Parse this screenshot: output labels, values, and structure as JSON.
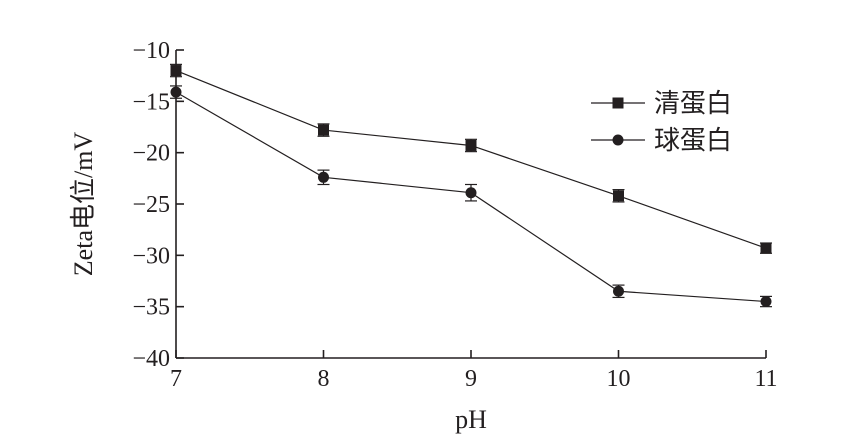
{
  "chart_data": {
    "type": "line",
    "x": [
      7,
      8,
      9,
      10,
      11
    ],
    "xlabel": "pH",
    "ylabel": "Zeta电位/mV",
    "xlim": [
      7,
      11
    ],
    "ylim": [
      -40,
      -10
    ],
    "xticks": [
      "7",
      "8",
      "9",
      "10",
      "11"
    ],
    "yticks": [
      "−10",
      "−15",
      "−20",
      "−25",
      "−30",
      "−35",
      "−40"
    ],
    "ytick_values": [
      -10,
      -15,
      -20,
      -25,
      -30,
      -35,
      -40
    ],
    "grid": false,
    "legend_position": "top-right",
    "series": [
      {
        "name": "清蛋白",
        "marker": "square",
        "values": [
          -12.0,
          -17.8,
          -19.3,
          -24.2,
          -29.3
        ],
        "errors": [
          0.6,
          0.6,
          0.6,
          0.6,
          0.5
        ]
      },
      {
        "name": "球蛋白",
        "marker": "circle",
        "values": [
          -14.1,
          -22.4,
          -23.9,
          -33.5,
          -34.5
        ],
        "errors": [
          0.6,
          0.7,
          0.8,
          0.6,
          0.5
        ]
      }
    ]
  }
}
